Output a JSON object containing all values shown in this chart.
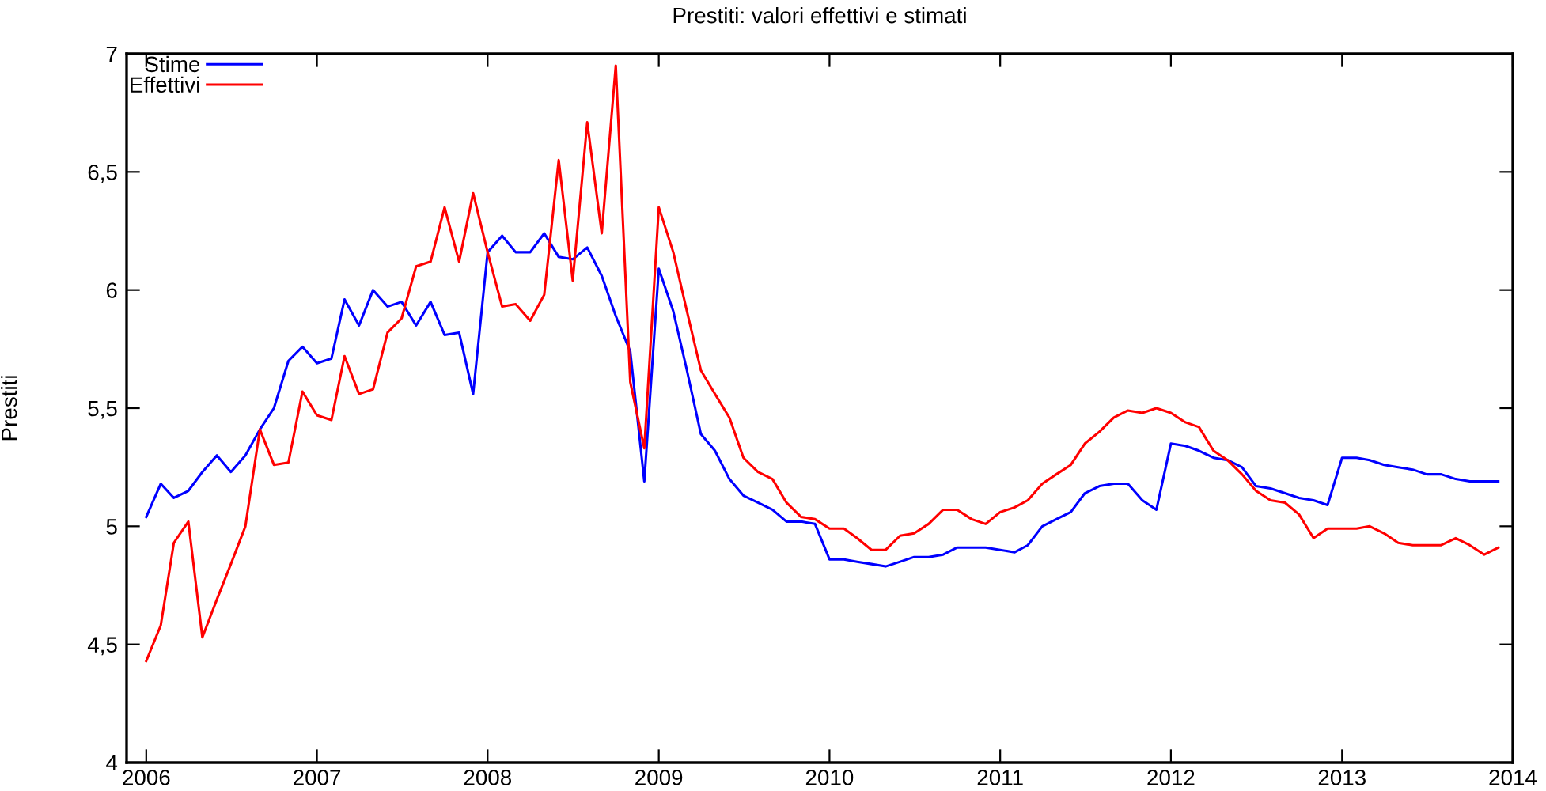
{
  "chart_data": {
    "type": "line",
    "title": "Prestiti: valori effettivi e stimati",
    "ylabel": "Prestiti",
    "x": [
      "2006-01",
      "2006-02",
      "2006-03",
      "2006-04",
      "2006-05",
      "2006-06",
      "2006-07",
      "2006-08",
      "2006-09",
      "2006-10",
      "2006-11",
      "2006-12",
      "2007-01",
      "2007-02",
      "2007-03",
      "2007-04",
      "2007-05",
      "2007-06",
      "2007-07",
      "2007-08",
      "2007-09",
      "2007-10",
      "2007-11",
      "2007-12",
      "2008-01",
      "2008-02",
      "2008-03",
      "2008-04",
      "2008-05",
      "2008-06",
      "2008-07",
      "2008-08",
      "2008-09",
      "2008-10",
      "2008-11",
      "2008-12",
      "2009-01",
      "2009-02",
      "2009-03",
      "2009-04",
      "2009-05",
      "2009-06",
      "2009-07",
      "2009-08",
      "2009-09",
      "2009-10",
      "2009-11",
      "2009-12",
      "2010-01",
      "2010-02",
      "2010-03",
      "2010-04",
      "2010-05",
      "2010-06",
      "2010-07",
      "2010-08",
      "2010-09",
      "2010-10",
      "2010-11",
      "2010-12",
      "2011-01",
      "2011-02",
      "2011-03",
      "2011-04",
      "2011-05",
      "2011-06",
      "2011-07",
      "2011-08",
      "2011-09",
      "2011-10",
      "2011-11",
      "2011-12",
      "2012-01",
      "2012-02",
      "2012-03",
      "2012-04",
      "2012-05",
      "2012-06",
      "2012-07",
      "2012-08",
      "2012-09",
      "2012-10",
      "2012-11",
      "2012-12",
      "2013-01",
      "2013-02",
      "2013-03",
      "2013-04",
      "2013-05",
      "2013-06",
      "2013-07",
      "2013-08",
      "2013-09",
      "2013-10",
      "2013-11",
      "2013-12"
    ],
    "series": [
      {
        "name": "Stime",
        "color": "#0000ff",
        "values": [
          5.04,
          5.18,
          5.12,
          5.15,
          5.23,
          5.3,
          5.23,
          5.3,
          5.41,
          5.5,
          5.7,
          5.76,
          5.69,
          5.71,
          5.96,
          5.85,
          6.0,
          5.93,
          5.95,
          5.85,
          5.95,
          5.81,
          5.82,
          5.56,
          6.16,
          6.23,
          6.16,
          6.16,
          6.24,
          6.14,
          6.13,
          6.18,
          6.06,
          5.89,
          5.74,
          5.19,
          6.09,
          5.91,
          5.67,
          5.39,
          5.32,
          5.2,
          5.13,
          5.1,
          5.07,
          5.02,
          5.02,
          5.01,
          4.86,
          4.86,
          4.85,
          4.84,
          4.83,
          4.85,
          4.87,
          4.87,
          4.88,
          4.91,
          4.91,
          4.91,
          4.9,
          4.89,
          4.92,
          5.0,
          5.03,
          5.06,
          5.14,
          5.17,
          5.18,
          5.18,
          5.11,
          5.07,
          5.35,
          5.34,
          5.32,
          5.29,
          5.28,
          5.25,
          5.17,
          5.16,
          5.14,
          5.12,
          5.11,
          5.09,
          5.29,
          5.29,
          5.28,
          5.26,
          5.25,
          5.24,
          5.22,
          5.22,
          5.2,
          5.19,
          5.19,
          5.19
        ]
      },
      {
        "name": "Effettivi",
        "color": "#ff0000",
        "values": [
          4.43,
          4.58,
          4.93,
          5.02,
          4.53,
          4.69,
          4.84,
          5.0,
          5.41,
          5.26,
          5.27,
          5.57,
          5.47,
          5.45,
          5.72,
          5.56,
          5.58,
          5.82,
          5.88,
          6.1,
          6.12,
          6.35,
          6.12,
          6.41,
          6.16,
          5.93,
          5.94,
          5.87,
          5.98,
          6.55,
          6.04,
          6.71,
          6.24,
          6.95,
          5.61,
          5.33,
          6.35,
          6.16,
          5.92,
          5.66,
          5.56,
          5.46,
          5.29,
          5.23,
          5.2,
          5.1,
          5.04,
          5.03,
          4.99,
          4.99,
          4.95,
          4.9,
          4.9,
          4.96,
          4.97,
          5.01,
          5.07,
          5.07,
          5.03,
          5.01,
          5.06,
          5.08,
          5.11,
          5.18,
          5.22,
          5.26,
          5.35,
          5.4,
          5.46,
          5.49,
          5.48,
          5.5,
          5.48,
          5.44,
          5.42,
          5.32,
          5.28,
          5.22,
          5.15,
          5.11,
          5.1,
          5.05,
          4.95,
          4.99,
          4.99,
          4.99,
          5.0,
          4.97,
          4.93,
          4.92,
          4.92,
          4.92,
          4.95,
          4.92,
          4.88,
          4.91
        ]
      }
    ],
    "xlim": [
      "2005-11-20",
      "2014-01-01"
    ],
    "xticks": [
      {
        "value": "2006",
        "label": "2006"
      },
      {
        "value": "2007",
        "label": "2007"
      },
      {
        "value": "2008",
        "label": "2008"
      },
      {
        "value": "2009",
        "label": "2009"
      },
      {
        "value": "2010",
        "label": "2010"
      },
      {
        "value": "2011",
        "label": "2011"
      },
      {
        "value": "2012",
        "label": "2012"
      },
      {
        "value": "2013",
        "label": "2013"
      },
      {
        "value": "2014",
        "label": "2014"
      }
    ],
    "ylim": [
      4,
      7
    ],
    "yticks": [
      4,
      {
        "value": 4.5,
        "label": "4,5"
      },
      5,
      {
        "value": 5.5,
        "label": "5,5"
      },
      6,
      {
        "value": 6.5,
        "label": "6,5"
      },
      7
    ],
    "grid": false,
    "legend": "top left",
    "marker": "none",
    "line_style": "solid"
  }
}
